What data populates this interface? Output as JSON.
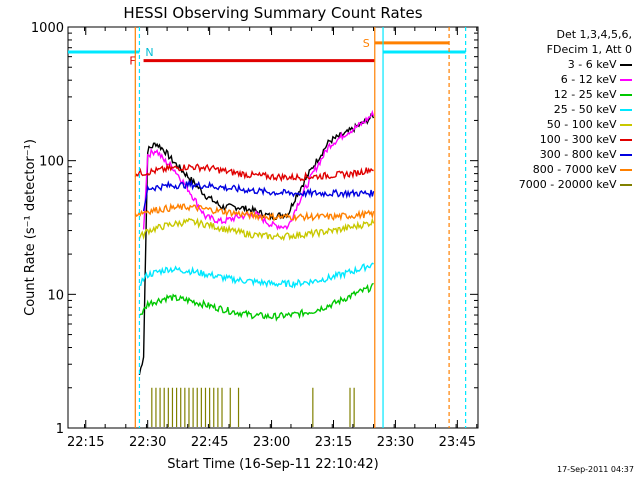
{
  "chart_data": {
    "type": "line",
    "title": "HESSI Observing Summary Count Rates",
    "xlabel": "Start Time (16-Sep-11 22:10:42)",
    "ylabel": "Count Rate (s⁻¹ detector⁻¹)",
    "yscale": "log",
    "ylim": [
      1,
      1000
    ],
    "xlim": [
      "22:10:42",
      "23:50:00"
    ],
    "yticks": [
      "1",
      "10",
      "100",
      "1000"
    ],
    "xticks": [
      "22:15",
      "22:30",
      "22:45",
      "23:00",
      "23:15",
      "23:30",
      "23:45"
    ],
    "legend_header": [
      "Det 1,3,4,5,6,",
      "FDecim 1, Att 0"
    ],
    "series": [
      {
        "name": "3 - 6 keV",
        "color": "#000000",
        "x": [
          "22:28",
          "22:29",
          "22:30",
          "22:32",
          "22:34",
          "22:36",
          "22:40",
          "22:44",
          "22:48",
          "22:52",
          "22:56",
          "23:00",
          "23:04",
          "23:06",
          "23:10",
          "23:14",
          "23:18",
          "23:22",
          "23:25"
        ],
        "y": [
          2.5,
          3.5,
          120,
          135,
          120,
          100,
          75,
          55,
          45,
          45,
          42,
          38,
          40,
          55,
          90,
          140,
          160,
          190,
          220
        ]
      },
      {
        "name": "6 - 12 keV",
        "color": "#ff00ff",
        "x": [
          "22:29",
          "22:30",
          "22:32",
          "22:34",
          "22:36",
          "22:40",
          "22:44",
          "22:48",
          "22:52",
          "22:56",
          "23:00",
          "23:04",
          "23:06",
          "23:10",
          "23:14",
          "23:18",
          "23:22",
          "23:25"
        ],
        "y": [
          30,
          110,
          120,
          100,
          90,
          60,
          38,
          35,
          38,
          40,
          33,
          32,
          45,
          80,
          130,
          160,
          190,
          230
        ]
      },
      {
        "name": "12 - 25 keV",
        "color": "#00c800",
        "x": [
          "22:28",
          "22:29",
          "22:30",
          "22:35",
          "22:40",
          "22:45",
          "22:50",
          "22:55",
          "23:00",
          "23:05",
          "23:10",
          "23:15",
          "23:20",
          "23:25"
        ],
        "y": [
          7,
          7.5,
          8.5,
          9.5,
          9,
          8.2,
          7.5,
          7,
          6.8,
          7,
          7.5,
          8.5,
          10,
          11.5
        ]
      },
      {
        "name": "25 - 50 keV",
        "color": "#00e8ff",
        "x": [
          "22:28",
          "22:29",
          "22:30",
          "22:35",
          "22:40",
          "22:45",
          "22:50",
          "22:55",
          "23:00",
          "23:05",
          "23:10",
          "23:15",
          "23:20",
          "23:25"
        ],
        "y": [
          12,
          13,
          14,
          15.5,
          15,
          14,
          13,
          12.5,
          12,
          12,
          12.5,
          13.5,
          15,
          17
        ]
      },
      {
        "name": "50 - 100 keV",
        "color": "#c8c800",
        "x": [
          "22:28",
          "22:29",
          "22:30",
          "22:35",
          "22:40",
          "22:45",
          "22:50",
          "22:55",
          "23:00",
          "23:05",
          "23:10",
          "23:15",
          "23:20",
          "23:25"
        ],
        "y": [
          27,
          28,
          30,
          33,
          35,
          33,
          30,
          28,
          27,
          27.5,
          28.5,
          30,
          32,
          35
        ]
      },
      {
        "name": "100 - 300 keV",
        "color": "#e00000",
        "x": [
          "22:27",
          "22:30",
          "22:35",
          "22:40",
          "22:45",
          "22:50",
          "22:55",
          "23:00",
          "23:05",
          "23:10",
          "23:15",
          "23:20",
          "23:25"
        ],
        "y": [
          80,
          82,
          87,
          90,
          88,
          82,
          78,
          76,
          75,
          76,
          78,
          80,
          88
        ]
      },
      {
        "name": "300 - 800 keV",
        "color": "#0000e0",
        "x": [
          "22:29",
          "22:30",
          "22:35",
          "22:40",
          "22:45",
          "22:50",
          "22:55",
          "23:00",
          "23:05",
          "23:10",
          "23:15",
          "23:20",
          "23:25"
        ],
        "y": [
          40,
          62,
          65,
          66,
          65,
          62,
          60,
          58,
          57,
          57,
          57,
          57,
          57
        ]
      },
      {
        "name": "800 - 7000 keV",
        "color": "#ff8000",
        "x": [
          "22:27",
          "22:30",
          "22:35",
          "22:40",
          "22:45",
          "22:50",
          "22:55",
          "23:00",
          "23:05",
          "23:10",
          "23:15",
          "23:20",
          "23:25"
        ],
        "y": [
          40,
          42,
          44,
          45,
          43,
          41,
          39,
          38,
          38,
          38,
          38,
          39,
          40
        ]
      },
      {
        "name": "7000 - 20000 keV",
        "color": "#808000",
        "x": [
          "22:31",
          "22:32",
          "22:33",
          "22:34",
          "22:35",
          "22:36",
          "22:37",
          "22:38",
          "22:39",
          "22:40",
          "22:41",
          "22:42",
          "22:43",
          "22:44",
          "22:45",
          "22:46",
          "22:47",
          "22:48",
          "22:50",
          "22:52",
          "23:10",
          "23:19",
          "23:20"
        ],
        "y": [
          2,
          2,
          2,
          2,
          2,
          2,
          2,
          2,
          2,
          2,
          2,
          2,
          2,
          2,
          2,
          2,
          2,
          2,
          2,
          2,
          2,
          2,
          2
        ]
      }
    ],
    "annotations": {
      "N": "N",
      "F": "F",
      "S": "S"
    }
  },
  "timestamp": "17-Sep-2011 04:37"
}
